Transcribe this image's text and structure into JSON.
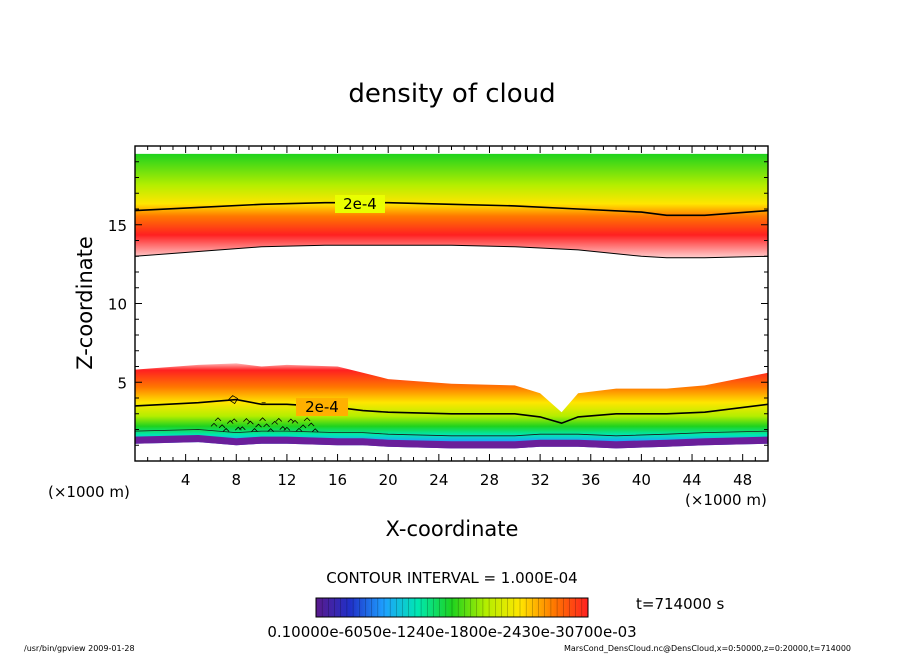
{
  "chart_data": {
    "type": "heatmap",
    "title": "density of cloud",
    "xlabel": "X-coordinate",
    "ylabel": "Z-coordinate",
    "x_unit": "(×1000 m)",
    "y_unit": "(×1000 m)",
    "xlim": [
      0,
      50
    ],
    "ylim": [
      0,
      20
    ],
    "x_ticks": [
      4,
      8,
      12,
      16,
      20,
      24,
      28,
      32,
      36,
      40,
      44,
      48
    ],
    "y_ticks": [
      5,
      10,
      15
    ],
    "contour_interval_text": "CONTOUR INTERVAL = 1.000E-04",
    "contour_label": "2e-4",
    "time_text": "t=714000 s",
    "colorbar_labels_text": "0.10000e-6050e-1240e-1800e-2430e-30700e-03",
    "colorbar_min": 0.1,
    "colorbar_max": 0.0007,
    "colormap": [
      "#5a1a8c",
      "#2030c8",
      "#1ea0ff",
      "#00e8b0",
      "#1ed21e",
      "#b4ee00",
      "#ffe600",
      "#ff7800",
      "#ff2020"
    ],
    "upper_cloud_layer": {
      "x": [
        0,
        5,
        10,
        15,
        20,
        25,
        30,
        35,
        40,
        42,
        45,
        50
      ],
      "top_edge": [
        19.5,
        19.5,
        19.5,
        19.5,
        19.5,
        19.5,
        19.5,
        19.5,
        19.5,
        19.5,
        19.5,
        19.5
      ],
      "contour_2e-4": [
        15.9,
        16.1,
        16.3,
        16.4,
        16.4,
        16.3,
        16.2,
        16.0,
        15.8,
        15.6,
        15.6,
        15.9
      ],
      "bottom_edge": [
        13.0,
        13.3,
        13.6,
        13.7,
        13.7,
        13.7,
        13.6,
        13.4,
        13.0,
        12.9,
        12.9,
        13.0
      ]
    },
    "lower_cloud_layer": {
      "x": [
        0,
        5,
        8,
        10,
        12,
        16,
        18,
        20,
        25,
        30,
        32,
        33.7,
        35,
        38,
        42,
        45,
        50
      ],
      "top_edge": [
        5.8,
        6.1,
        6.2,
        6.0,
        6.1,
        6.0,
        5.6,
        5.2,
        4.9,
        4.8,
        4.3,
        3.1,
        4.3,
        4.6,
        4.6,
        4.8,
        5.6
      ],
      "contour_2e-4": [
        3.5,
        3.7,
        3.9,
        3.6,
        3.6,
        3.4,
        3.2,
        3.1,
        3.0,
        3.0,
        2.8,
        2.4,
        2.8,
        3.0,
        3.0,
        3.1,
        3.6
      ],
      "bottom_edge": [
        1.1,
        1.2,
        1.0,
        1.1,
        1.1,
        1.0,
        1.0,
        0.9,
        0.8,
        0.8,
        0.9,
        0.9,
        0.9,
        0.8,
        0.9,
        1.0,
        1.1
      ]
    }
  },
  "footer": {
    "left": "/usr/bin/gpview   2009-01-28",
    "right": "MarsCond_DensCloud.nc@DensCloud,x=0:50000,z=0:20000,t=714000"
  }
}
